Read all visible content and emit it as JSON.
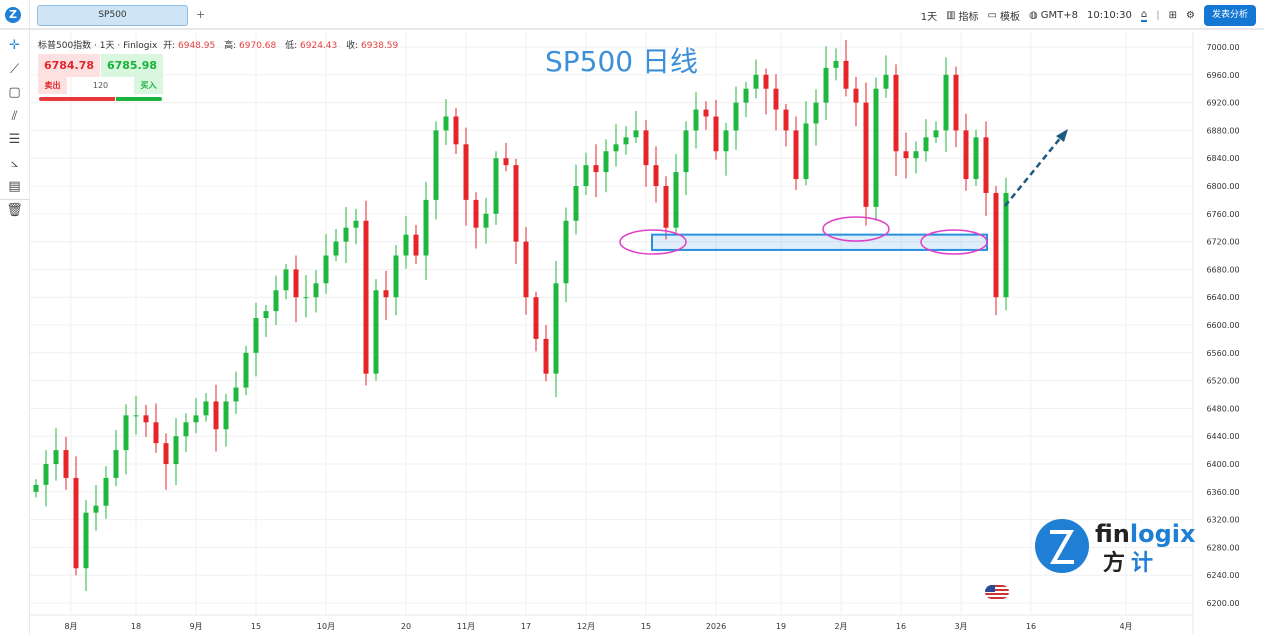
{
  "topbar": {
    "logo": "Z",
    "tab": "SP500",
    "add_tab": "+",
    "interval": "1天",
    "indicators": "指标",
    "templates": "模板",
    "timezone": "GMT+8",
    "clock": "10:10:30",
    "publish": "发表分析"
  },
  "toolbar": [
    "crosshair-icon",
    "trend-line-icon",
    "rectangle-icon",
    "parallel-channel-icon",
    "fib-retracement-icon",
    "gann-fan-icon",
    "text-note-icon",
    "trash-icon"
  ],
  "info": {
    "name": "标普500指数 · 1天 · Finlogix",
    "open_label": "开:",
    "open": "6948.95",
    "high_label": "高:",
    "high": "6970.68",
    "low_label": "低:",
    "low": "6924.43",
    "close_label": "收:",
    "close": "6938.59"
  },
  "trade": {
    "sell_price": "6784.78",
    "buy_price": "6785.98",
    "sell": "卖出",
    "buy": "买入",
    "quantity": "120"
  },
  "chart_title": "SP500 日线",
  "watermark": {
    "brand": "finlogix",
    "brand_cn": "方计"
  },
  "colors": {
    "up": "#1fb83f",
    "down": "#e5252a",
    "accent": "#1477d4",
    "annotation_box": "#2b8fe0",
    "ellipse": "#e040c8",
    "arrow": "#1c5a80"
  },
  "chart_data": {
    "type": "candlestick",
    "ylim": [
      6200,
      7000
    ],
    "y_ticks": [
      "7000.00",
      "6960.00",
      "6920.00",
      "6880.00",
      "6840.00",
      "6800.00",
      "6760.00",
      "6720.00",
      "6680.00",
      "6640.00",
      "6600.00",
      "6560.00",
      "6520.00",
      "6480.00",
      "6440.00",
      "6400.00",
      "6360.00",
      "6320.00",
      "6280.00",
      "6240.00",
      "6200.00"
    ],
    "x_ticks": [
      {
        "label": "8月",
        "i": 3.5
      },
      {
        "label": "18",
        "i": 10
      },
      {
        "label": "9月",
        "i": 16
      },
      {
        "label": "15",
        "i": 22
      },
      {
        "label": "10月",
        "i": 29
      },
      {
        "label": "20",
        "i": 37
      },
      {
        "label": "11月",
        "i": 43
      },
      {
        "label": "17",
        "i": 49
      },
      {
        "label": "12月",
        "i": 55
      },
      {
        "label": "15",
        "i": 61
      },
      {
        "label": "2026",
        "i": 68
      },
      {
        "label": "19",
        "i": 74.5
      },
      {
        "label": "2月",
        "i": 80.5
      },
      {
        "label": "16",
        "i": 86.5
      },
      {
        "label": "3月",
        "i": 92.5
      },
      {
        "label": "16",
        "i": 99.5
      },
      {
        "label": "4月",
        "i": 109
      }
    ],
    "closes": [
      6370,
      6400,
      6420,
      6380,
      6250,
      6330,
      6340,
      6380,
      6420,
      6470,
      6470,
      6460,
      6430,
      6400,
      6440,
      6460,
      6470,
      6490,
      6450,
      6490,
      6510,
      6560,
      6610,
      6620,
      6650,
      6680,
      6640,
      6640,
      6660,
      6700,
      6720,
      6740,
      6750,
      6530,
      6650,
      6640,
      6700,
      6730,
      6700,
      6780,
      6880,
      6900,
      6860,
      6780,
      6740,
      6760,
      6840,
      6830,
      6720,
      6640,
      6580,
      6530,
      6660,
      6750,
      6800,
      6830,
      6820,
      6850,
      6860,
      6870,
      6880,
      6830,
      6800,
      6740,
      6820,
      6880,
      6910,
      6900,
      6850,
      6880,
      6920,
      6940,
      6960,
      6940,
      6910,
      6880,
      6810,
      6890,
      6920,
      6970,
      6980,
      6940,
      6920,
      6770,
      6940,
      6960,
      6850,
      6840,
      6850,
      6870,
      6880,
      6960,
      6880,
      6810,
      6870,
      6790,
      6640,
      6790
    ],
    "annotations": {
      "support_zone": [
        6708,
        6730
      ]
    }
  }
}
